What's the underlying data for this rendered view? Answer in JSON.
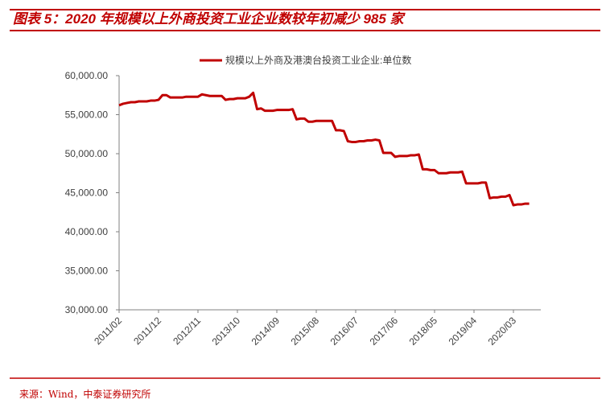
{
  "header": {
    "title": "图表 5：2020 年规模以上外商投资工业企业数较年初减少 985 家"
  },
  "chart_data": {
    "type": "line",
    "categories": [
      "2011/02",
      null,
      null,
      null,
      null,
      null,
      null,
      null,
      null,
      null,
      "2011/12",
      null,
      null,
      null,
      null,
      null,
      null,
      null,
      null,
      null,
      "2012/11",
      null,
      null,
      null,
      null,
      null,
      null,
      null,
      null,
      null,
      "2013/10",
      null,
      null,
      null,
      null,
      null,
      null,
      null,
      null,
      null,
      "2014/09",
      null,
      null,
      null,
      null,
      null,
      null,
      null,
      null,
      null,
      "2015/08",
      null,
      null,
      null,
      null,
      null,
      null,
      null,
      null,
      null,
      "2016/07",
      null,
      null,
      null,
      null,
      null,
      null,
      null,
      null,
      null,
      "2017/06",
      null,
      null,
      null,
      null,
      null,
      null,
      null,
      null,
      null,
      "2018/05",
      null,
      null,
      null,
      null,
      null,
      null,
      null,
      null,
      null,
      "2019/04",
      null,
      null,
      null,
      null,
      null,
      null,
      null,
      null,
      null,
      "2020/03",
      null,
      null,
      null,
      null
    ],
    "series": [
      {
        "name": "规模以上外商及港澳台投资工业企业:单位数",
        "color": "#c00000",
        "values": [
          56200,
          56400,
          56500,
          56600,
          56600,
          56700,
          56700,
          56700,
          56800,
          56800,
          56900,
          57500,
          57500,
          57200,
          57200,
          57200,
          57200,
          57300,
          57300,
          57300,
          57300,
          57600,
          57500,
          57400,
          57400,
          57400,
          57400,
          56900,
          57000,
          57000,
          57100,
          57100,
          57100,
          57300,
          57800,
          55700,
          55800,
          55500,
          55500,
          55500,
          55600,
          55600,
          55600,
          55600,
          55700,
          54400,
          54500,
          54500,
          54100,
          54100,
          54200,
          54200,
          54200,
          54200,
          54200,
          53000,
          53000,
          52900,
          51600,
          51500,
          51500,
          51600,
          51600,
          51700,
          51700,
          51800,
          51700,
          50100,
          50100,
          50100,
          49600,
          49700,
          49700,
          49700,
          49800,
          49800,
          49900,
          48000,
          48000,
          47900,
          47900,
          47500,
          47500,
          47500,
          47600,
          47600,
          47600,
          47700,
          46200,
          46200,
          46200,
          46200,
          46300,
          46300,
          44300,
          44400,
          44400,
          44500,
          44500,
          44700,
          43400,
          43500,
          43500,
          43600,
          43600
        ]
      }
    ],
    "ylim": [
      30000,
      60000
    ],
    "yticks": [
      {
        "value": 30000,
        "label": "30,000.00"
      },
      {
        "value": 35000,
        "label": "35,000.00"
      },
      {
        "value": 40000,
        "label": "40,000.00"
      },
      {
        "value": 45000,
        "label": "45,000.00"
      },
      {
        "value": 50000,
        "label": "50,000.00"
      },
      {
        "value": 55000,
        "label": "55,000.00"
      },
      {
        "value": 60000,
        "label": "60,000.00"
      }
    ],
    "legend": "top"
  },
  "footer": {
    "source": "来源：Wind，中泰证券研究所"
  }
}
